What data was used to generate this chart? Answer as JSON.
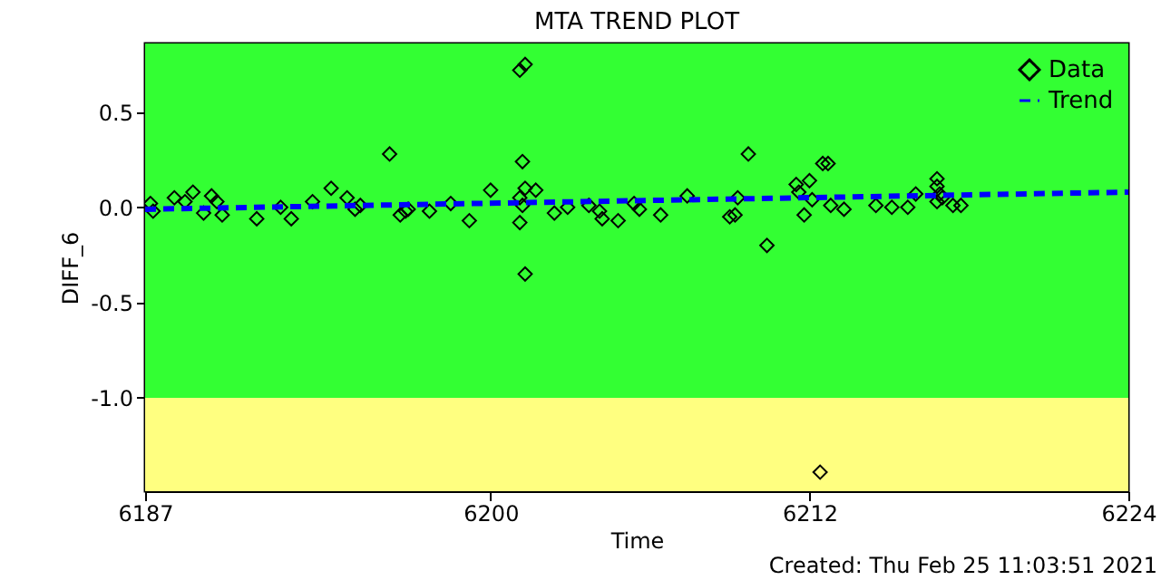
{
  "chart_data": {
    "type": "scatter",
    "title": "MTA TREND PLOT",
    "xlabel": "Time",
    "ylabel": "DIFF_6",
    "annotations": [
      "Created: Thu Feb 25 11:03:51 2021"
    ],
    "xlim": [
      6187,
      6224
    ],
    "xticks": [
      6187,
      6200,
      6212,
      6224
    ],
    "ylim": [
      -1.49,
      0.86
    ],
    "yticks": [
      {
        "value": -1.0,
        "label": "-1.0"
      },
      -0.5,
      {
        "value": 0.0,
        "label": "0.0"
      },
      0.5
    ],
    "grid": false,
    "legend": "top right",
    "bands": [
      {
        "axis": "y",
        "from": -1.0,
        "to": 0.86,
        "color": "#33ff33"
      },
      {
        "axis": "y",
        "from": -1.49,
        "to": -1.0,
        "color": "#ffff80"
      }
    ],
    "series": [
      {
        "name": "Data",
        "color": "#000000",
        "marker": "diamond",
        "x": [
          6187.2,
          6187.3,
          6188.1,
          6188.5,
          6188.8,
          6189.2,
          6189.5,
          6189.7,
          6189.9,
          6191.2,
          6192.1,
          6192.5,
          6193.3,
          6194.0,
          6194.6,
          6194.9,
          6195.1,
          6196.2,
          6196.6,
          6196.8,
          6196.9,
          6197.7,
          6198.5,
          6199.2,
          6200.0,
          6201.1,
          6201.3,
          6201.2,
          6201.3,
          6201.1,
          6201.2,
          6201.1,
          6201.3,
          6201.7,
          6202.4,
          6202.9,
          6203.7,
          6204.1,
          6204.2,
          6204.8,
          6205.4,
          6205.6,
          6206.4,
          6207.4,
          6209.0,
          6209.2,
          6209.3,
          6209.7,
          6210.4,
          6211.5,
          6211.6,
          6211.8,
          6212.0,
          6212.4,
          6212.5,
          6212.7,
          6212.1,
          6212.8,
          6213.3,
          6214.5,
          6215.1,
          6215.7,
          6216.0,
          6216.8,
          6216.8,
          6216.9,
          6216.8,
          6217.0,
          6217.4,
          6217.7
        ],
        "values": [
          0.02,
          -0.02,
          0.05,
          0.03,
          0.08,
          -0.03,
          0.06,
          0.03,
          -0.04,
          -0.06,
          0.0,
          -0.06,
          0.03,
          0.1,
          0.05,
          -0.01,
          0.01,
          0.28,
          -0.04,
          -0.02,
          -0.01,
          -0.02,
          0.02,
          -0.07,
          0.09,
          0.72,
          0.75,
          0.24,
          0.1,
          0.05,
          0.01,
          -0.08,
          -0.35,
          0.09,
          -0.03,
          0.0,
          0.01,
          -0.02,
          -0.06,
          -0.07,
          0.02,
          -0.01,
          -0.04,
          0.06,
          -0.05,
          -0.04,
          0.05,
          0.28,
          -0.2,
          0.12,
          0.08,
          -0.04,
          0.14,
          -1.39,
          0.23,
          0.23,
          0.04,
          0.01,
          -0.01,
          0.01,
          0.0,
          0.0,
          0.07,
          0.15,
          0.11,
          0.07,
          0.03,
          0.05,
          0.01,
          0.01
        ]
      },
      {
        "name": "Trend",
        "type": "line",
        "color": "#0000ff",
        "line_style": "dashed",
        "x": [
          6187,
          6224
        ],
        "values": [
          -0.01,
          0.08
        ]
      }
    ]
  }
}
